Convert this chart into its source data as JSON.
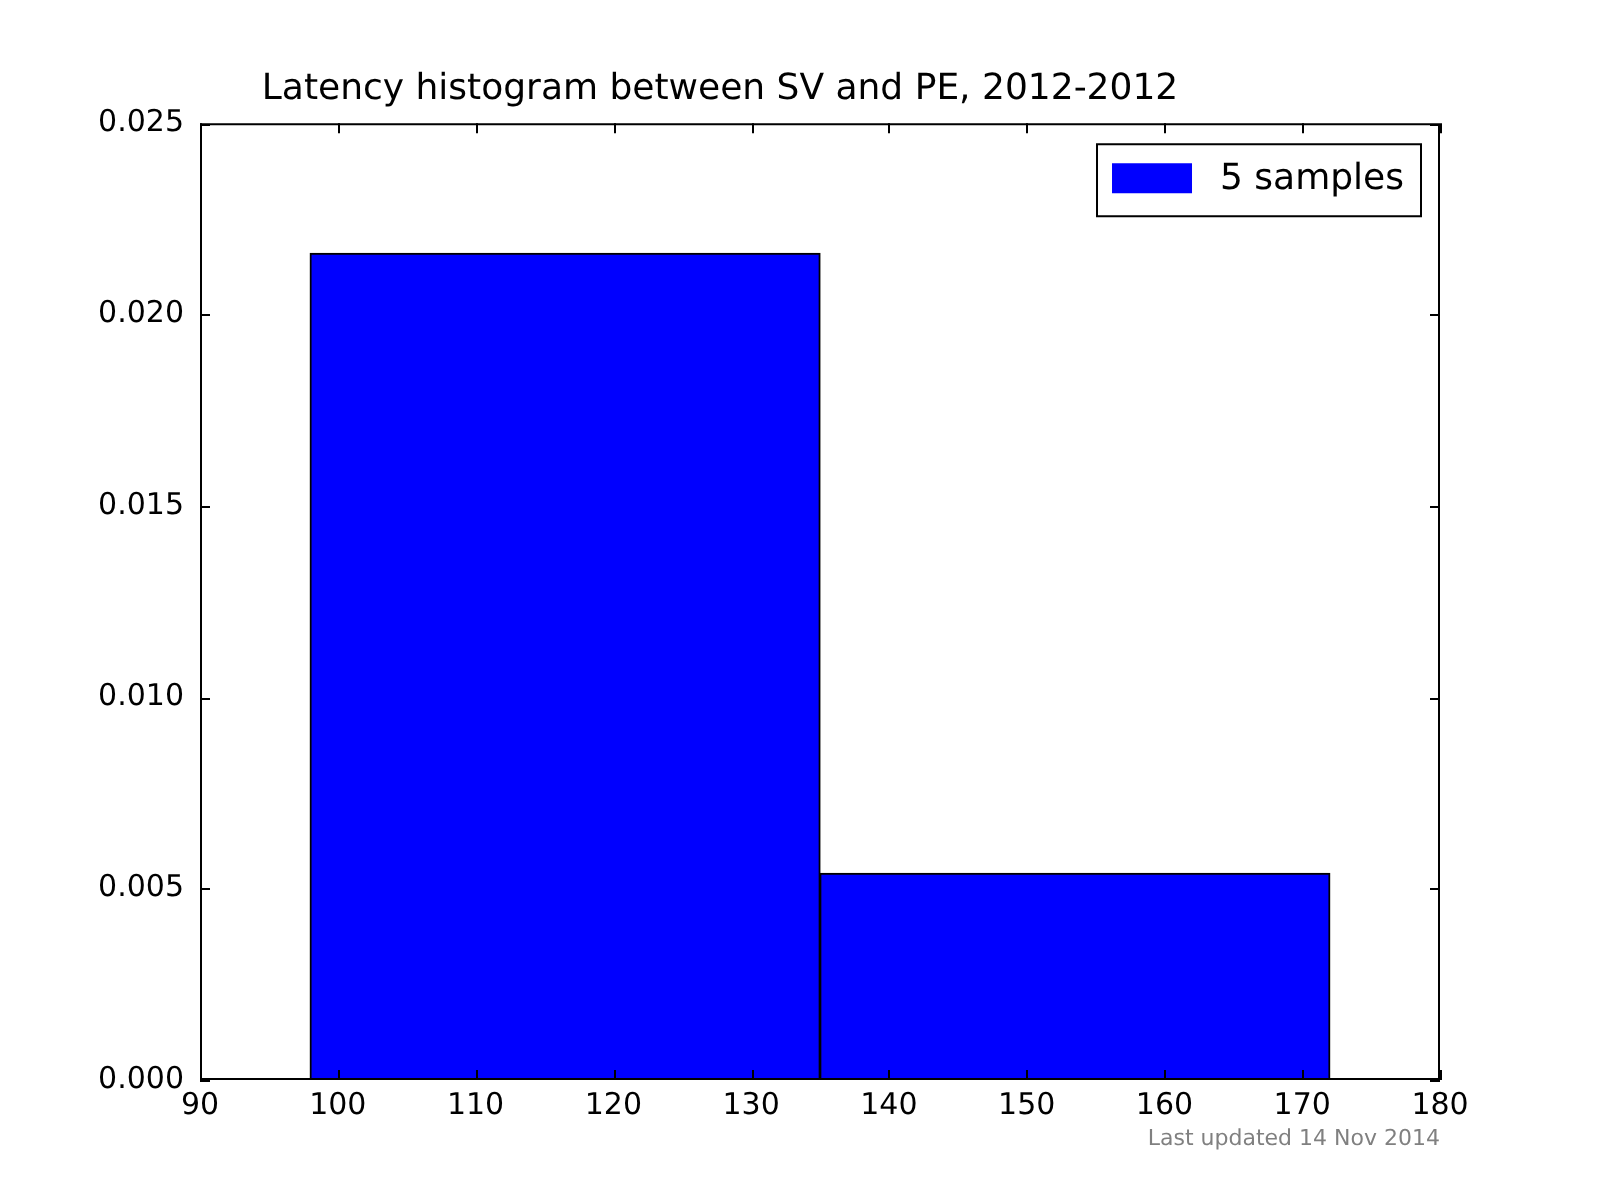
{
  "chart_data": {
    "type": "histogram",
    "title": "Latency histogram between SV and PE, 2012-2012",
    "bins": [
      98,
      135,
      172
    ],
    "series": [
      {
        "name": "5 samples",
        "color": "#0000ff",
        "values": [
          0.0216,
          0.0054
        ]
      }
    ],
    "xlim": [
      90,
      180
    ],
    "xticks": [
      90,
      100,
      110,
      120,
      130,
      140,
      150,
      160,
      170,
      180
    ],
    "ylim": [
      0,
      0.025
    ],
    "yticks": [
      {
        "value": 0,
        "label": "0.000"
      },
      {
        "value": 0.005,
        "label": "0.005"
      },
      {
        "value": 0.01,
        "label": "0.010"
      },
      {
        "value": 0.015,
        "label": "0.015"
      },
      {
        "value": 0.02,
        "label": "0.020"
      },
      {
        "value": 0.025,
        "label": "0.025"
      }
    ],
    "grid": false,
    "legend": "top right",
    "annotations": [
      "Last updated 14 Nov 2014"
    ]
  }
}
